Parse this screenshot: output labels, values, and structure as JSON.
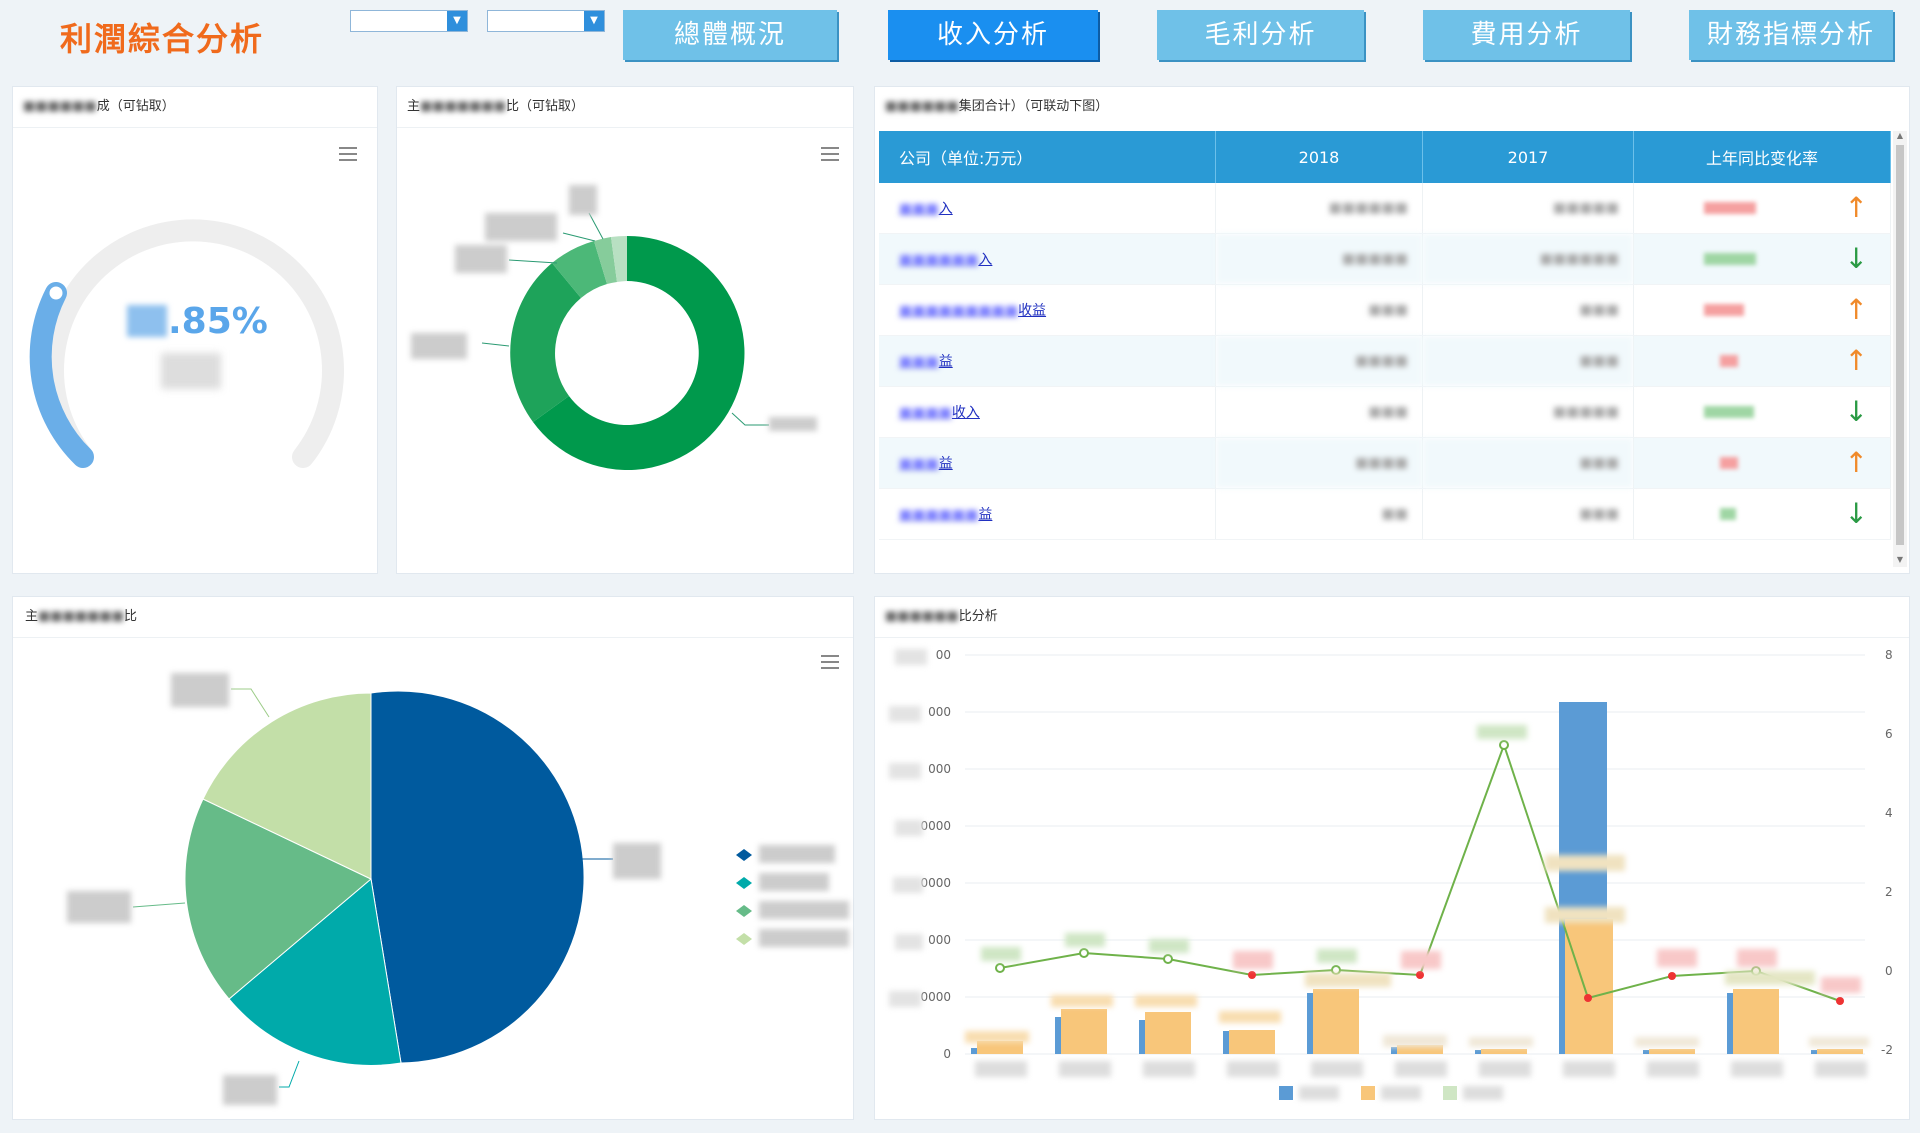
{
  "header": {
    "title": "利潤綜合分析",
    "filter_year": "",
    "filter_company": ""
  },
  "tabs": [
    {
      "label": "總體概況",
      "active": false
    },
    {
      "label": "收入分析",
      "active": true
    },
    {
      "label": "毛利分析",
      "active": false
    },
    {
      "label": "費用分析",
      "active": false
    },
    {
      "label": "財務指標分析",
      "active": false
    }
  ],
  "gauge_panel": {
    "title_suffix": "成（可钻取）",
    "value_suffix": ".85%",
    "progress": 0.2
  },
  "donut_panel": {
    "title_prefix": "主",
    "title_suffix": "比（可钻取）"
  },
  "table_panel": {
    "title_suffix": "集团合计）（可联动下图）",
    "columns": [
      "公司（单位:万元）",
      "2018",
      "2017",
      "上年同比变化率"
    ],
    "rows": [
      {
        "name_suffix": "入",
        "trend": "up"
      },
      {
        "name_suffix": "入",
        "trend": "down"
      },
      {
        "name_suffix": "收益",
        "trend": "up"
      },
      {
        "name_suffix": "益",
        "trend": "up"
      },
      {
        "name_suffix": "收入",
        "trend": "down"
      },
      {
        "name_suffix": "益",
        "trend": "up"
      },
      {
        "name_suffix": "益",
        "trend": "down"
      }
    ]
  },
  "pie_panel": {
    "title_prefix": "主",
    "title_suffix": "比"
  },
  "combo_panel": {
    "title_suffix": "比分析",
    "y_left_labels": [
      "00",
      "000",
      "000",
      "0000",
      "0000",
      "000",
      "0000",
      "0"
    ],
    "y_right_labels": [
      "8",
      "6",
      "4",
      "2",
      "0",
      "-2"
    ]
  },
  "colors": {
    "accent": "#1a8ff0",
    "title_orange": "#f06a1c",
    "gauge_blue": "#6aaee8",
    "donut_green": "#00994c",
    "pie_blue": "#005a9e",
    "pie_teal": "#00aaaa",
    "pie_green": "#66bb88",
    "pie_lightgreen": "#c3dfa8",
    "bar_orange": "#f8c67a",
    "bar_blue": "#5b9bd5",
    "line_green": "#6fb24a"
  },
  "icons": [
    "menu-icon",
    "arrow-up-icon",
    "arrow-down-icon",
    "dropdown-arrow-icon"
  ]
}
